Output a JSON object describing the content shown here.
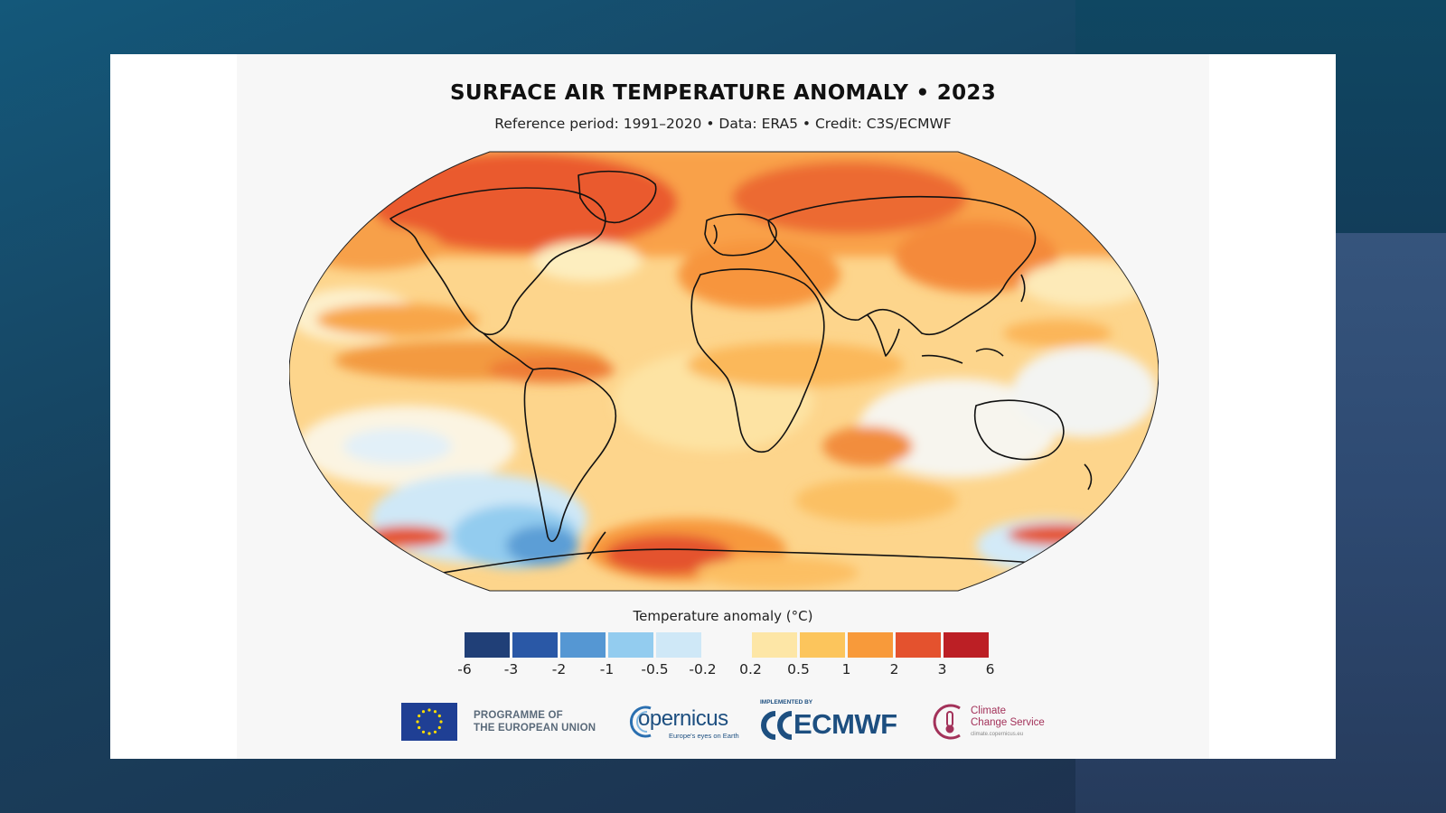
{
  "figure": {
    "title": "SURFACE AIR TEMPERATURE ANOMALY • 2023",
    "subtitle": "Reference period: 1991–2020 • Data: ERA5 • Credit: C3S/ECMWF"
  },
  "legend": {
    "title": "Temperature anomaly (°C)",
    "ticks": [
      "-6",
      "-3",
      "-2",
      "-1",
      "-0.5",
      "-0.2",
      "0.2",
      "0.5",
      "1",
      "2",
      "3",
      "6"
    ],
    "colors": [
      "#203f77",
      "#2a58a6",
      "#5597d3",
      "#93ccef",
      "#cfe8f7",
      "#f7f7f7",
      "#fde6a6",
      "#fcc55c",
      "#f89a3a",
      "#e4522e",
      "#bc1f25"
    ]
  },
  "logos": {
    "eu_line1": "PROGRAMME OF",
    "eu_line2": "THE EUROPEAN UNION",
    "copernicus": "opernicus",
    "copernicus_tagline": "Europe's eyes on Earth",
    "ecmwf_implemented": "IMPLEMENTED BY",
    "ecmwf": "ECMWF",
    "c3s_line1": "Climate",
    "c3s_line2": "Change Service",
    "c3s_url": "climate.copernicus.eu"
  },
  "colors": {
    "land_outline": "#111111",
    "map_base": "#fdd58c"
  }
}
